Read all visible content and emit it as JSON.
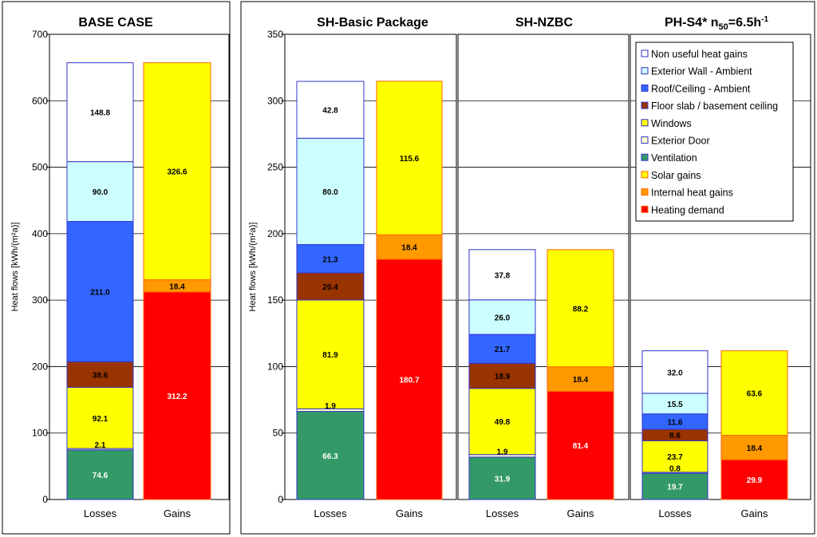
{
  "chart_data": {
    "type": "bar",
    "stacked": true,
    "ylabel": "Heat flows [kWh/(m²a)]",
    "categories": [
      "Losses",
      "Gains"
    ],
    "legend": {
      "position": "top-right",
      "entries": [
        {
          "name": "Non useful heat gains",
          "color": "#FFFFFF",
          "border": "#3333CC"
        },
        {
          "name": "Exterior Wall - Ambient",
          "color": "#CCFFFF",
          "border": "#3333CC"
        },
        {
          "name": "Roof/Ceiling - Ambient",
          "color": "#3366FF",
          "border": "#3333CC"
        },
        {
          "name": "Floor slab / basement ceiling",
          "color": "#993300",
          "border": "#3333CC"
        },
        {
          "name": "Windows",
          "color": "#FFFF00",
          "border": "#3333CC"
        },
        {
          "name": "Exterior Door",
          "color": "#FFFFCC",
          "border": "#3333CC"
        },
        {
          "name": "Ventilation",
          "color": "#339966",
          "border": "#3333CC"
        },
        {
          "name": "Solar gains",
          "color": "#FFFF00",
          "border": "#FF6600"
        },
        {
          "name": "Internal heat gains",
          "color": "#FF9900",
          "border": "#FF6600"
        },
        {
          "name": "Heating demand",
          "color": "#FF0000",
          "border": "#FF6600"
        }
      ]
    },
    "panels": [
      {
        "title": "BASE CASE",
        "ylim": [
          0,
          700
        ],
        "yticks": [
          0,
          100,
          200,
          300,
          400,
          500,
          600,
          700
        ],
        "losses": [
          {
            "name": "Ventilation",
            "value": 74.6
          },
          {
            "name": "Exterior Door",
            "value": 2.1
          },
          {
            "name": "Windows",
            "value": 92.1
          },
          {
            "name": "Floor slab / basement ceiling",
            "value": 38.6
          },
          {
            "name": "Roof/Ceiling - Ambient",
            "value": 211.0
          },
          {
            "name": "Exterior Wall - Ambient",
            "value": 90.0
          },
          {
            "name": "Non useful heat gains",
            "value": 148.8
          }
        ],
        "gains": [
          {
            "name": "Heating demand",
            "value": 312.2
          },
          {
            "name": "Internal heat gains",
            "value": 18.4
          },
          {
            "name": "Solar gains",
            "value": 326.6
          }
        ]
      },
      {
        "title": "SH-Basic Package",
        "ylim": [
          0,
          350
        ],
        "yticks": [
          0,
          50,
          100,
          150,
          200,
          250,
          300,
          350
        ],
        "losses": [
          {
            "name": "Ventilation",
            "value": 66.3
          },
          {
            "name": "Exterior Door",
            "value": 1.9
          },
          {
            "name": "Windows",
            "value": 81.9
          },
          {
            "name": "Floor slab / basement ceiling",
            "value": 20.4
          },
          {
            "name": "Roof/Ceiling - Ambient",
            "value": 21.3
          },
          {
            "name": "Exterior Wall - Ambient",
            "value": 80.0
          },
          {
            "name": "Non useful heat gains",
            "value": 42.8
          }
        ],
        "gains": [
          {
            "name": "Heating demand",
            "value": 180.7
          },
          {
            "name": "Internal heat gains",
            "value": 18.4
          },
          {
            "name": "Solar gains",
            "value": 115.6
          }
        ]
      },
      {
        "title": "SH-NZBC",
        "ylim": [
          0,
          350
        ],
        "losses": [
          {
            "name": "Ventilation",
            "value": 31.9
          },
          {
            "name": "Exterior Door",
            "value": 1.9
          },
          {
            "name": "Windows",
            "value": 49.8
          },
          {
            "name": "Floor slab / basement ceiling",
            "value": 18.9
          },
          {
            "name": "Roof/Ceiling - Ambient",
            "value": 21.7
          },
          {
            "name": "Exterior Wall - Ambient",
            "value": 26.0
          },
          {
            "name": "Non useful heat gains",
            "value": 37.8
          }
        ],
        "gains": [
          {
            "name": "Heating demand",
            "value": 81.4
          },
          {
            "name": "Internal heat gains",
            "value": 18.4
          },
          {
            "name": "Solar gains",
            "value": 88.2
          }
        ]
      },
      {
        "title": "PH-S4* n",
        "title_sub": "50",
        "title_rest": "=6.5h",
        "title_sup": "-1",
        "ylim": [
          0,
          350
        ],
        "losses": [
          {
            "name": "Ventilation",
            "value": 19.7
          },
          {
            "name": "Exterior Door",
            "value": 0.8
          },
          {
            "name": "Windows",
            "value": 23.7
          },
          {
            "name": "Floor slab / basement ceiling",
            "value": 8.6
          },
          {
            "name": "Roof/Ceiling - Ambient",
            "value": 11.6
          },
          {
            "name": "Exterior Wall - Ambient",
            "value": 15.5
          },
          {
            "name": "Non useful heat gains",
            "value": 32.0
          }
        ],
        "gains": [
          {
            "name": "Heating demand",
            "value": 29.9
          },
          {
            "name": "Internal heat gains",
            "value": 18.4
          },
          {
            "name": "Solar gains",
            "value": 63.6
          }
        ]
      }
    ]
  }
}
